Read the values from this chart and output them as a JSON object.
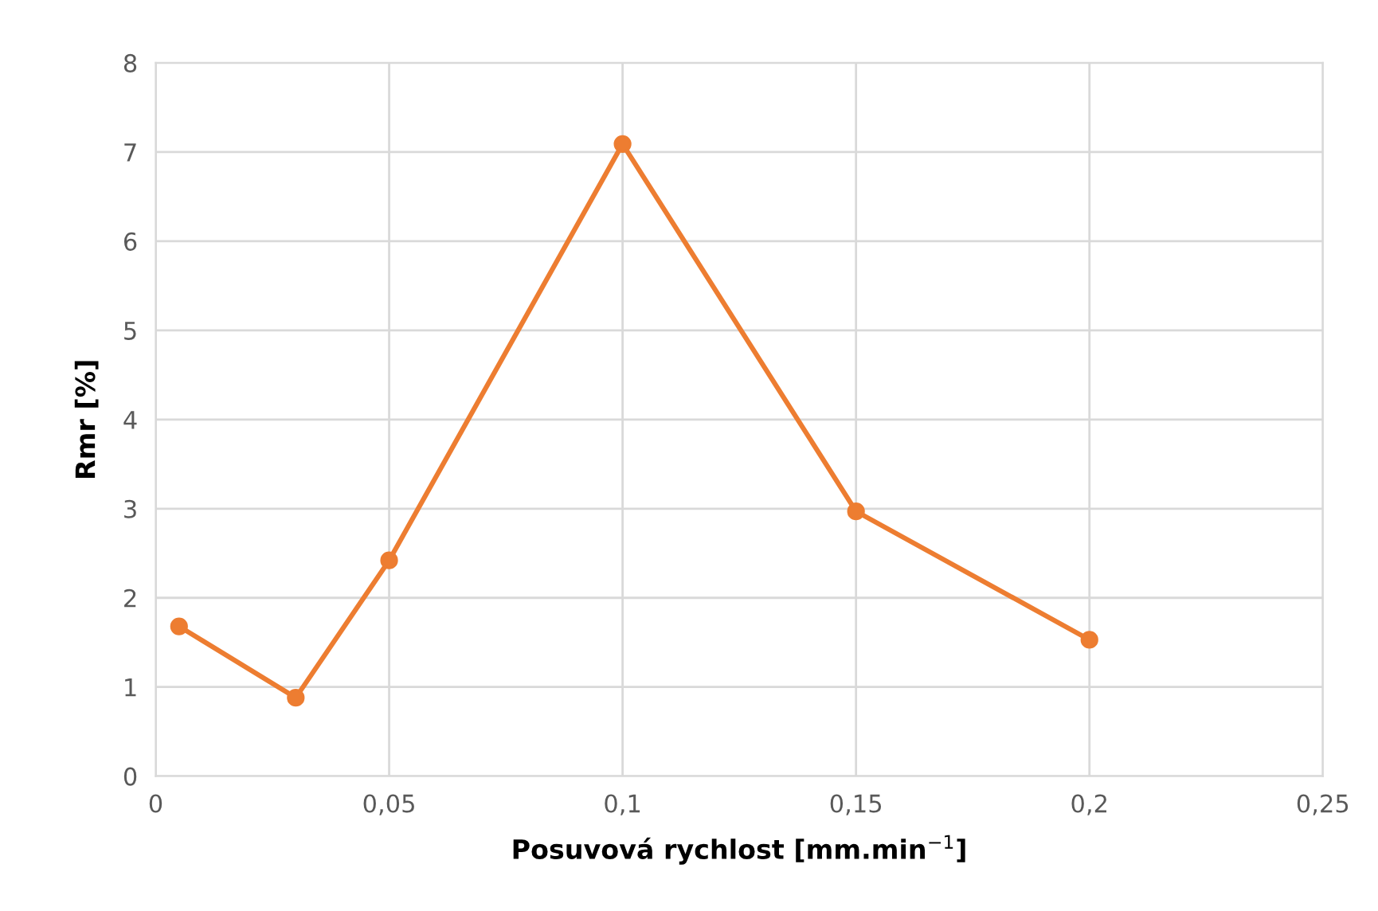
{
  "chart_data": {
    "type": "line",
    "xlabel": "Posuvová rychlost [mm.min$^{−1}$]",
    "ylabel": "Rmr [%]",
    "x": [
      0.005,
      0.03,
      0.05,
      0.1,
      0.15,
      0.2
    ],
    "series": [
      {
        "color": "#ed7d31",
        "values": [
          1.68,
          0.88,
          2.42,
          7.09,
          2.97,
          1.53
        ]
      }
    ],
    "xlim": [
      0,
      0.25
    ],
    "xticks": [
      0,
      {
        "value": 0.05,
        "label": "0,05"
      },
      {
        "value": 0.1,
        "label": "0,1"
      },
      {
        "value": 0.15,
        "label": "0,15"
      },
      {
        "value": 0.2,
        "label": "0,2"
      },
      {
        "value": 0.25,
        "label": "0,25"
      }
    ],
    "ylim": [
      0,
      8
    ],
    "yticks": [
      0,
      1,
      2,
      3,
      4,
      5,
      6,
      7,
      8
    ],
    "grid": true,
    "marker": "circle",
    "line_style": "solid"
  }
}
